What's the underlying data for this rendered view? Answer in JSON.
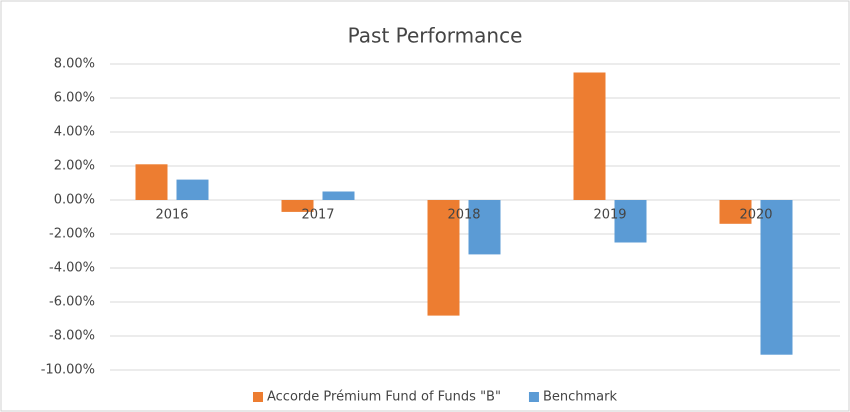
{
  "chart_data": {
    "type": "bar",
    "title": "Past Performance",
    "categories": [
      "2016",
      "2017",
      "2018",
      "2019",
      "2020"
    ],
    "series": [
      {
        "name": "Accorde Prémium Fund of Funds \"B\"",
        "color": "#ed7d31",
        "values": [
          2.1,
          -0.7,
          -6.8,
          7.5,
          -1.4
        ]
      },
      {
        "name": "Benchmark",
        "color": "#5b9bd5",
        "values": [
          1.2,
          0.5,
          -3.2,
          -2.5,
          -9.1
        ]
      }
    ],
    "ylim": [
      -10,
      8
    ],
    "yticks": [
      {
        "value": -10,
        "label": "-10.00%"
      },
      {
        "value": -8,
        "label": "-8.00%"
      },
      {
        "value": -6,
        "label": "-6.00%"
      },
      {
        "value": -4,
        "label": "-4.00%"
      },
      {
        "value": -2,
        "label": "-2.00%"
      },
      {
        "value": 0,
        "label": "0.00%"
      },
      {
        "value": 2,
        "label": "2.00%"
      },
      {
        "value": 4,
        "label": "4.00%"
      },
      {
        "value": 6,
        "label": "6.00%"
      },
      {
        "value": 8,
        "label": "8.00%"
      }
    ],
    "grid": true,
    "legend": "bottom"
  }
}
